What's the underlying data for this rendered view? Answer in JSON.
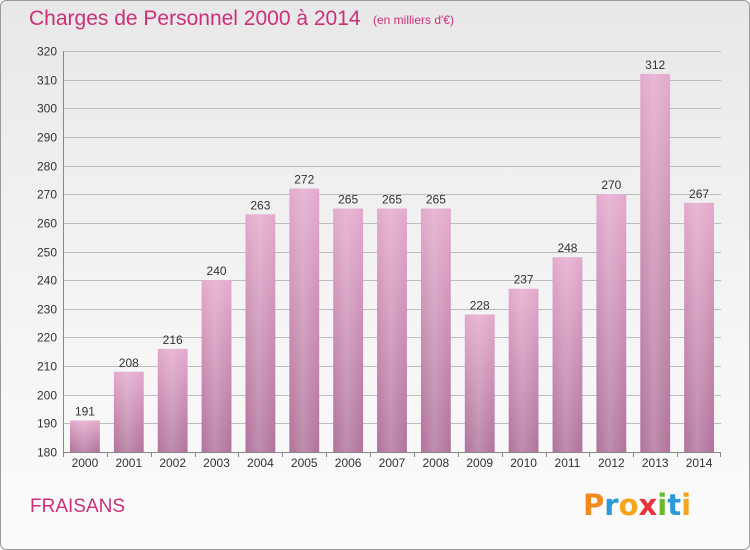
{
  "header": {
    "title": "Charges de Personnel 2000 à 2014",
    "subtitle": "(en milliers d'€)"
  },
  "footer": {
    "commune": "FRAISANS",
    "logo_text": "Proxiti",
    "logo_letters": [
      {
        "ch": "P",
        "color": "#f08a1c"
      },
      {
        "ch": "r",
        "color": "#2b9bd6"
      },
      {
        "ch": "o",
        "color": "#f4a51c"
      },
      {
        "ch": "x",
        "color": "#e8323c"
      },
      {
        "ch": "i",
        "color": "#6cb82c"
      },
      {
        "ch": "t",
        "color": "#2b9bd6"
      },
      {
        "ch": "i",
        "color": "#f4a51c"
      }
    ]
  },
  "colors": {
    "accent": "#cc2f7a",
    "bar_top": "#e4a9cd",
    "bar_bottom": "#b0739a",
    "grid": "#bdbdbd"
  },
  "chart_data": {
    "type": "bar",
    "title": "Charges de Personnel 2000 à 2014",
    "subtitle": "(en milliers d'€)",
    "categories": [
      "2000",
      "2001",
      "2002",
      "2003",
      "2004",
      "2005",
      "2006",
      "2007",
      "2008",
      "2009",
      "2010",
      "2011",
      "2012",
      "2013",
      "2014"
    ],
    "values": [
      191,
      208,
      216,
      240,
      263,
      272,
      265,
      265,
      265,
      228,
      237,
      248,
      270,
      312,
      267
    ],
    "ylim": [
      180,
      320
    ],
    "yticks": [
      180,
      190,
      200,
      210,
      220,
      230,
      240,
      250,
      260,
      270,
      280,
      290,
      300,
      310,
      320
    ],
    "grid": true,
    "xlabel": "",
    "ylabel": ""
  }
}
